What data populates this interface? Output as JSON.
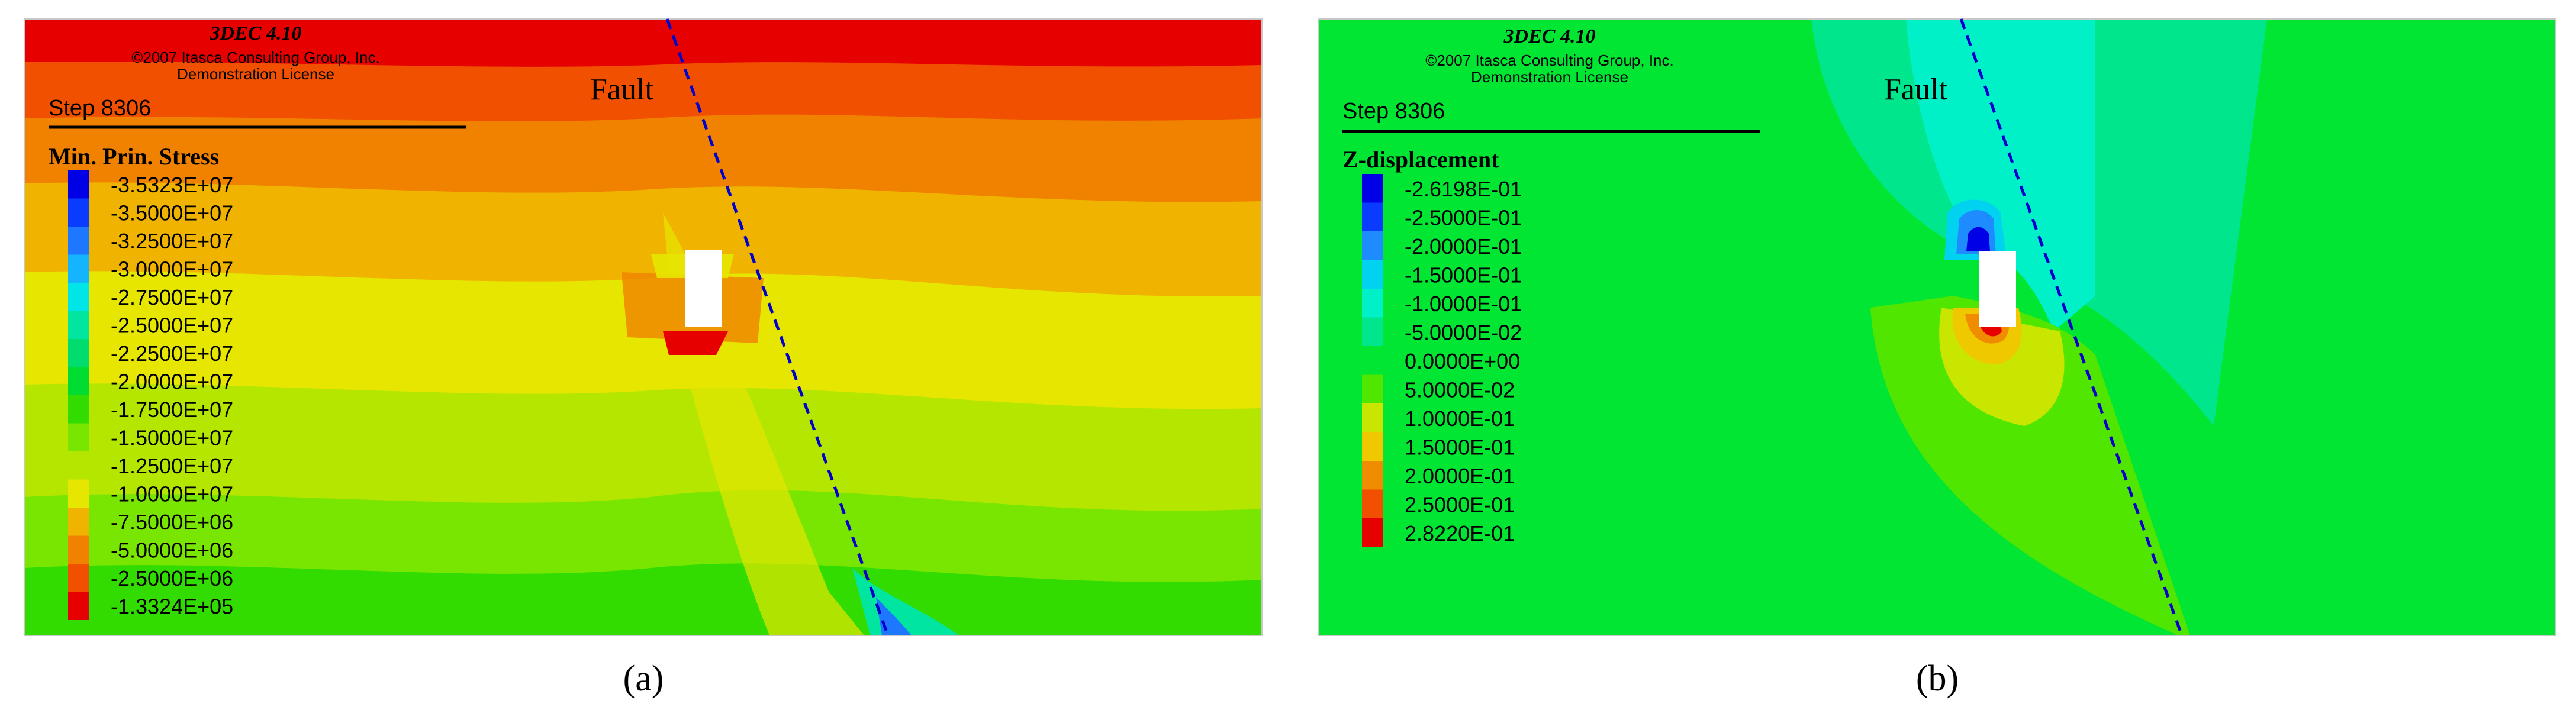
{
  "panel_a": {
    "software": "3DEC 4.10",
    "copyright": "©2007 Itasca Consulting Group, Inc.",
    "license": "Demonstration License",
    "step": "Step 8306",
    "fault_label": "Fault",
    "legend_title": "Min. Prin. Stress",
    "legend": [
      {
        "label": "-3.5323E+07",
        "color": "#0000e6"
      },
      {
        "label": "-3.5000E+07",
        "color": "#0a3cff"
      },
      {
        "label": "-3.2500E+07",
        "color": "#1e78ff"
      },
      {
        "label": "-3.0000E+07",
        "color": "#14b4ff"
      },
      {
        "label": "-2.7500E+07",
        "color": "#00e6e6"
      },
      {
        "label": "-2.5000E+07",
        "color": "#00e6a0"
      },
      {
        "label": "-2.2500E+07",
        "color": "#00dc6e"
      },
      {
        "label": "-2.0000E+07",
        "color": "#00dc32"
      },
      {
        "label": "-1.7500E+07",
        "color": "#32dc00"
      },
      {
        "label": "-1.5000E+07",
        "color": "#78e600"
      },
      {
        "label": "-1.2500E+07",
        "color": "#b4e600"
      },
      {
        "label": "-1.0000E+07",
        "color": "#e6e600"
      },
      {
        "label": "-7.5000E+06",
        "color": "#f0b400"
      },
      {
        "label": "-5.0000E+06",
        "color": "#f08200"
      },
      {
        "label": "-2.5000E+06",
        "color": "#f05000"
      },
      {
        "label": "-1.3324E+05",
        "color": "#e60000"
      }
    ],
    "caption": "(a)"
  },
  "panel_b": {
    "software": "3DEC 4.10",
    "copyright": "©2007 Itasca Consulting Group, Inc.",
    "license": "Demonstration License",
    "step": "Step 8306",
    "fault_label": "Fault",
    "legend_title": "Z-displacement",
    "legend": [
      {
        "label": "-2.6198E-01",
        "color": "#0000e6"
      },
      {
        "label": "-2.5000E-01",
        "color": "#0a3cff"
      },
      {
        "label": "-2.0000E-01",
        "color": "#1e8cff"
      },
      {
        "label": "-1.5000E-01",
        "color": "#00d2f0"
      },
      {
        "label": "-1.0000E-01",
        "color": "#00f0c8"
      },
      {
        "label": "-5.0000E-02",
        "color": "#00e68c"
      },
      {
        "label": "0.0000E+00",
        "color": "#00e632"
      },
      {
        "label": "5.0000E-02",
        "color": "#50e600"
      },
      {
        "label": "1.0000E-01",
        "color": "#c8e600"
      },
      {
        "label": "1.5000E-01",
        "color": "#f0c800"
      },
      {
        "label": "2.0000E-01",
        "color": "#f08c00"
      },
      {
        "label": "2.5000E-01",
        "color": "#f05000"
      },
      {
        "label": "2.8220E-01",
        "color": "#e60000"
      }
    ],
    "caption": "(b)"
  }
}
